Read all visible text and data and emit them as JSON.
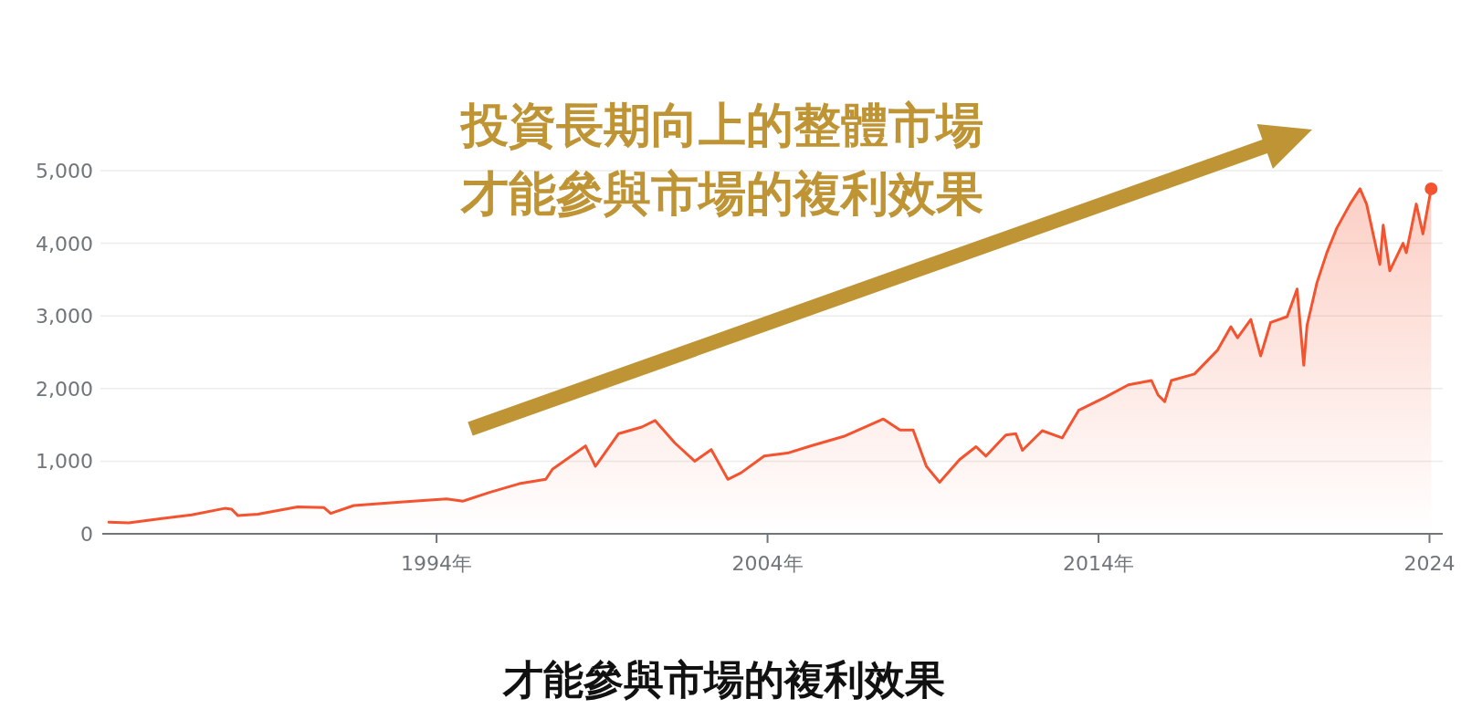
{
  "chart_data": {
    "type": "area",
    "annotations": [
      "投資長期向上的整體市場",
      "才能參與市場的複利效果",
      "才能參與市場的複利效果"
    ],
    "xlim": [
      1983.9,
      2024.4
    ],
    "ylim": [
      0,
      5000
    ],
    "xticks": [
      {
        "value": 1994,
        "label": "1994年"
      },
      {
        "value": 2004,
        "label": "2004年"
      },
      {
        "value": 2014,
        "label": "2014年"
      },
      {
        "value": 2024,
        "label": "2024"
      }
    ],
    "yticks": [
      0,
      {
        "value": 1000,
        "label": "1,000"
      },
      {
        "value": 2000,
        "label": "2,000"
      },
      {
        "value": 3000,
        "label": "3,000"
      },
      {
        "value": 4000,
        "label": "4,000"
      },
      {
        "value": 5000,
        "label": "5,000"
      }
    ],
    "grid": "y",
    "series": [
      {
        "color": "#f4532f",
        "x": [
          1984.1,
          1984.7,
          1985.7,
          1986.6,
          1987.6,
          1987.8,
          1988.0,
          1988.6,
          1989.8,
          1990.6,
          1990.8,
          1991.5,
          1993.0,
          1994.3,
          1994.8,
          1995.6,
          1996.5,
          1997.3,
          1997.5,
          1998.5,
          1998.8,
          1999.5,
          2000.2,
          2000.6,
          2001.2,
          2001.8,
          2002.3,
          2002.8,
          2003.2,
          2003.9,
          2004.6,
          2005.3,
          2006.3,
          2007.5,
          2008.0,
          2008.4,
          2008.8,
          2009.2,
          2009.8,
          2010.3,
          2010.6,
          2011.2,
          2011.5,
          2011.7,
          2012.3,
          2012.9,
          2013.4,
          2014.2,
          2014.9,
          2015.6,
          2015.8,
          2016.0,
          2016.2,
          2016.9,
          2017.6,
          2018.0,
          2018.2,
          2018.6,
          2018.9,
          2019.2,
          2019.7,
          2020.0,
          2020.2,
          2020.3,
          2020.6,
          2020.9,
          2021.2,
          2021.6,
          2021.9,
          2022.1,
          2022.5,
          2022.6,
          2022.8,
          2023.2,
          2023.3,
          2023.6,
          2023.8,
          2024.0,
          2024.05
        ],
        "values": [
          160,
          150,
          210,
          260,
          350,
          340,
          250,
          270,
          370,
          360,
          280,
          390,
          440,
          480,
          450,
          570,
          690,
          750,
          890,
          1210,
          930,
          1380,
          1470,
          1560,
          1250,
          1000,
          1160,
          750,
          840,
          1070,
          1110,
          1210,
          1340,
          1580,
          1430,
          1430,
          930,
          710,
          1020,
          1200,
          1070,
          1360,
          1380,
          1150,
          1420,
          1320,
          1700,
          1880,
          2050,
          2110,
          1910,
          1820,
          2110,
          2200,
          2530,
          2850,
          2700,
          2950,
          2450,
          2910,
          2990,
          3370,
          2320,
          2870,
          3460,
          3870,
          4210,
          4540,
          4750,
          4540,
          3710,
          4250,
          3620,
          4000,
          3870,
          4540,
          4130,
          4630,
          4750
        ]
      },
      {
        "type": "scatter",
        "marker": "circle",
        "color": "#f4532f",
        "x": [
          2024.05
        ],
        "values": [
          4750
        ]
      }
    ]
  }
}
